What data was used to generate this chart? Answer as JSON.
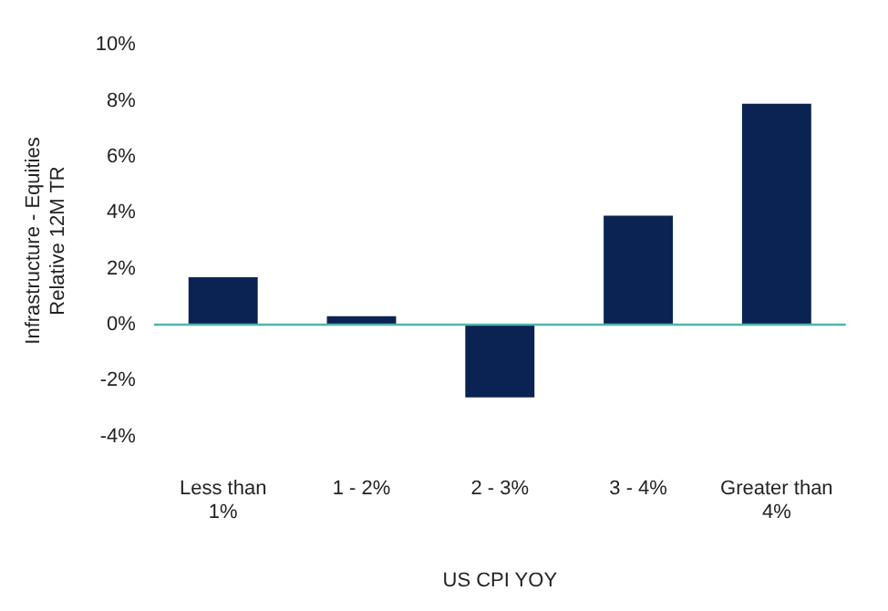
{
  "chart_data": {
    "type": "bar",
    "xlabel": "US CPI YOY",
    "ylabel": "Infrastructure - Equities\nRelative 12M TR",
    "categories": [
      "Less than 1%",
      "1 - 2%",
      "2 - 3%",
      "3 - 4%",
      "Greater than 4%"
    ],
    "values": [
      1.7,
      0.3,
      -2.6,
      3.9,
      7.9
    ],
    "color": "#0b2352",
    "ylim": [
      -4,
      10
    ],
    "yticks": [
      {
        "value": -4,
        "label": "-4%"
      },
      {
        "value": -2,
        "label": "-2%"
      },
      {
        "value": 0,
        "label": "0%"
      },
      {
        "value": 2,
        "label": "2%"
      },
      {
        "value": 4,
        "label": "4%"
      },
      {
        "value": 6,
        "label": "6%"
      },
      {
        "value": 8,
        "label": "8%"
      },
      {
        "value": 10,
        "label": "10%"
      }
    ],
    "ref_lines": [
      {
        "axis": "y",
        "value": 0,
        "color": "#4db6ac"
      }
    ],
    "grid": false,
    "legend": false
  }
}
